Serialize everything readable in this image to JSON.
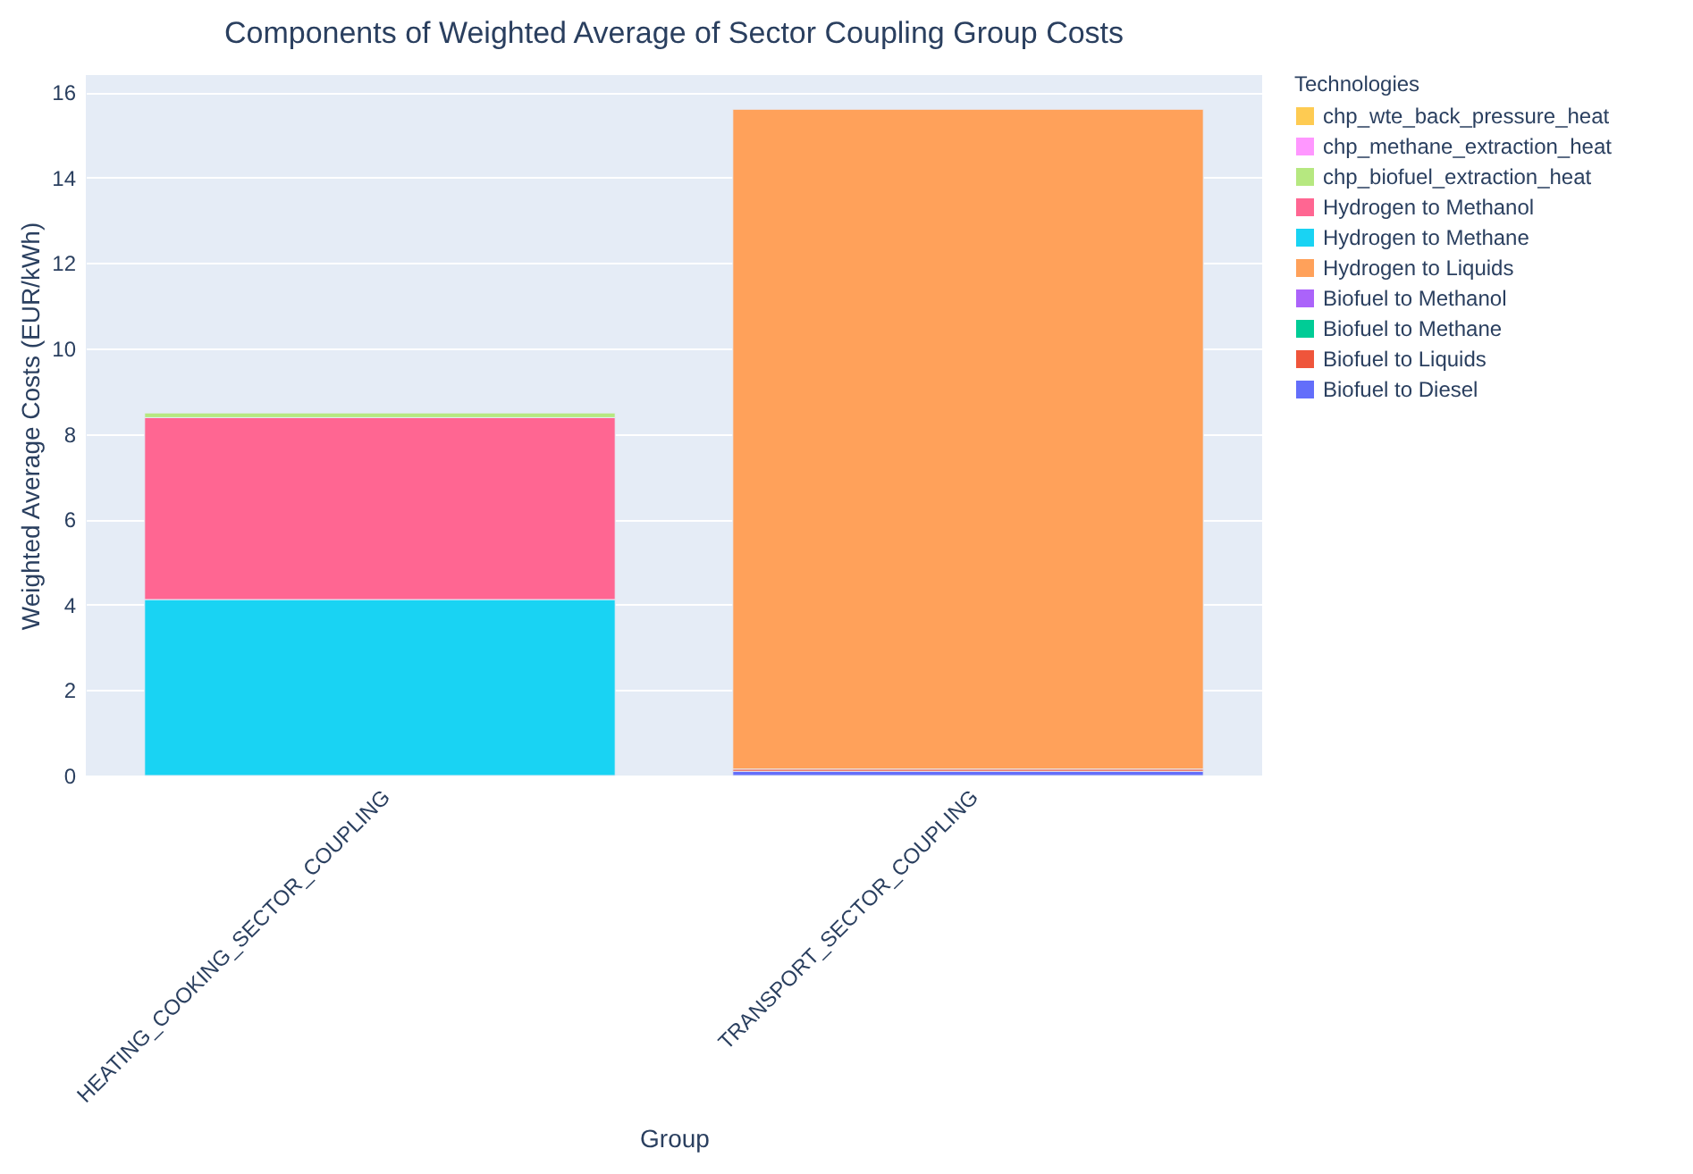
{
  "chart_data": {
    "type": "bar",
    "title": "Components of Weighted Average of Sector Coupling Group Costs",
    "xlabel": "Group",
    "ylabel": "Weighted Average Costs (EUR/kWh)",
    "legend_title": "Technologies",
    "categories": [
      "HEATING_COOKING_SECTOR_COUPLING",
      "TRANSPORT_SECTOR_COUPLING"
    ],
    "stacked": true,
    "ylim": [
      0,
      16.4
    ],
    "yticks": [
      0,
      2,
      4,
      6,
      8,
      10,
      12,
      14,
      16
    ],
    "grid": "y",
    "legend": "top right",
    "series": [
      {
        "name": "Biofuel to Diesel",
        "color": "#636efa",
        "values": [
          null,
          0.1
        ]
      },
      {
        "name": "Biofuel to Liquids",
        "color": "#ef553b",
        "values": [
          null,
          0.05
        ]
      },
      {
        "name": "Biofuel to Methane",
        "color": "#00cc96",
        "values": [
          null,
          null
        ]
      },
      {
        "name": "Biofuel to Methanol",
        "color": "#ab63fa",
        "values": [
          null,
          null
        ]
      },
      {
        "name": "Hydrogen to Liquids",
        "color": "#ffa15a",
        "values": [
          null,
          15.45
        ]
      },
      {
        "name": "Hydrogen to Methane",
        "color": "#19d3f3",
        "values": [
          4.12,
          null
        ]
      },
      {
        "name": "Hydrogen to Methanol",
        "color": "#ff6692",
        "values": [
          4.26,
          null
        ]
      },
      {
        "name": "chp_biofuel_extraction_heat",
        "color": "#b6e880",
        "values": [
          0.11,
          null
        ]
      },
      {
        "name": "chp_methane_extraction_heat",
        "color": "#ff97ff",
        "values": [
          null,
          null
        ]
      },
      {
        "name": "chp_wte_back_pressure_heat",
        "color": "#fecb52",
        "values": [
          null,
          null
        ]
      }
    ]
  }
}
